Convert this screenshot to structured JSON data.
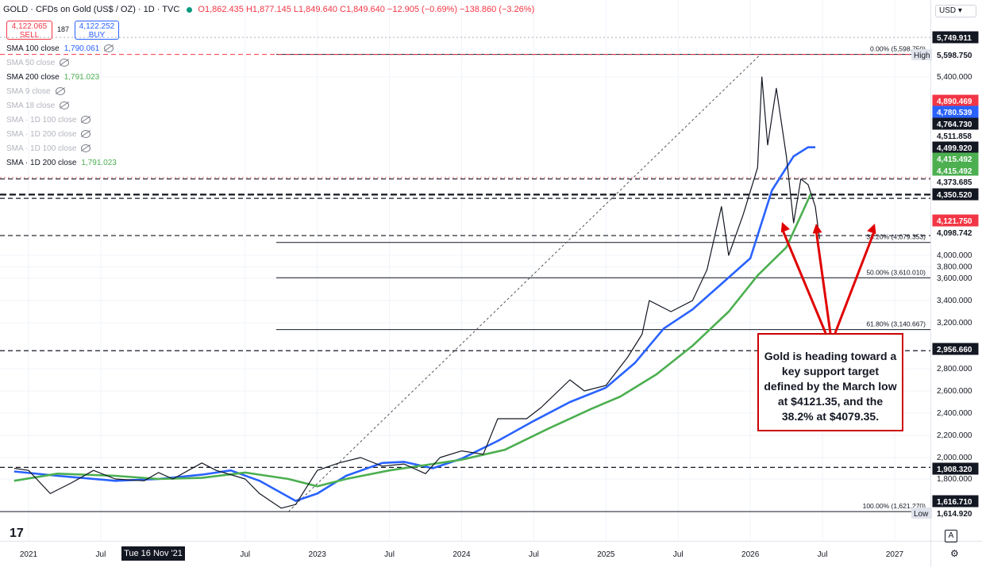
{
  "header": {
    "title": "GOLD · CFDs on Gold (US$ / OZ) · 1D · TVC",
    "ohlc": "O1,862.435 H1,877.145 L1,849.640 C1,849.640 −12.905 (−0.69%) −138.860 (−3.26%)"
  },
  "trade": {
    "sell_price": "4,122.065",
    "sell_label": "SELL",
    "spread": "187",
    "buy_price": "4,122.252",
    "buy_label": "BUY"
  },
  "currency": "USD",
  "indicators": [
    {
      "label": "SMA 100 close",
      "value": "1,790.061",
      "color": "#2962ff",
      "muted": false
    },
    {
      "label": "SMA 50 close",
      "value": "",
      "muted": true
    },
    {
      "label": "SMA 200 close",
      "value": "1,791.023",
      "color": "#4caf50",
      "muted": false
    },
    {
      "label": "SMA 9 close",
      "value": "",
      "muted": true
    },
    {
      "label": "SMA 18 close",
      "value": "",
      "muted": true
    },
    {
      "label": "SMA · 1D 100 close",
      "value": "",
      "muted": true
    },
    {
      "label": "SMA · 1D 200 close",
      "value": "",
      "muted": true
    },
    {
      "label": "SMA · 1D 100 close",
      "value": "",
      "muted": true
    },
    {
      "label": "SMA · 1D 200 close",
      "value": "1,791.023",
      "muted": false
    }
  ],
  "annotation": "Gold is heading toward a key support target defined by the March low at $4121.35, and the 38.2% at $4079.35.",
  "tz_label": "Tue 16 Nov '21",
  "chart_data": {
    "type": "line",
    "ylim": [
      1600,
      5800
    ],
    "y_ticks": [
      1800,
      2000,
      2200,
      2400,
      2600,
      2800,
      3200,
      3400,
      3600,
      3800,
      4000,
      5400
    ],
    "y_tick_labels": [
      "1,800.000",
      "2,000.000",
      "2,200.000",
      "2,400.000",
      "2,600.000",
      "2,800.000",
      "3,200.000",
      "3,400.000",
      "3,600.000",
      "3,800.000",
      "4,000.000",
      "5,400.000"
    ],
    "x_ticks": [
      {
        "t": 2021.0,
        "label": "2021"
      },
      {
        "t": 2021.5,
        "label": "Jul"
      },
      {
        "t": 2022.5,
        "label": "Jul"
      },
      {
        "t": 2023.0,
        "label": "2023"
      },
      {
        "t": 2023.5,
        "label": "Jul"
      },
      {
        "t": 2024.0,
        "label": "2024"
      },
      {
        "t": 2024.5,
        "label": "Jul"
      },
      {
        "t": 2025.0,
        "label": "2025"
      },
      {
        "t": 2025.5,
        "label": "Jul"
      },
      {
        "t": 2026.0,
        "label": "2026"
      },
      {
        "t": 2026.5,
        "label": "Jul"
      },
      {
        "t": 2027.0,
        "label": "2027"
      }
    ],
    "series": [
      {
        "name": "SMA 100 close",
        "color": "#2962ff",
        "points": [
          [
            2020.9,
            1870
          ],
          [
            2021.2,
            1830
          ],
          [
            2021.6,
            1790
          ],
          [
            2021.9,
            1800
          ],
          [
            2022.2,
            1840
          ],
          [
            2022.4,
            1880
          ],
          [
            2022.6,
            1790
          ],
          [
            2022.85,
            1680
          ],
          [
            2023.0,
            1720
          ],
          [
            2023.2,
            1830
          ],
          [
            2023.45,
            1950
          ],
          [
            2023.6,
            1960
          ],
          [
            2023.8,
            1900
          ],
          [
            2024.0,
            1990
          ],
          [
            2024.25,
            2150
          ],
          [
            2024.5,
            2330
          ],
          [
            2024.75,
            2500
          ],
          [
            2025.0,
            2630
          ],
          [
            2025.2,
            2850
          ],
          [
            2025.4,
            3150
          ],
          [
            2025.6,
            3320
          ],
          [
            2025.8,
            3550
          ],
          [
            2026.0,
            3950
          ],
          [
            2026.15,
            4400
          ],
          [
            2026.3,
            4700
          ],
          [
            2026.4,
            4780
          ],
          [
            2026.45,
            4780
          ]
        ]
      },
      {
        "name": "SMA 200 close",
        "color": "#4caf50",
        "points": [
          [
            2020.9,
            1790
          ],
          [
            2021.2,
            1850
          ],
          [
            2021.6,
            1830
          ],
          [
            2021.9,
            1800
          ],
          [
            2022.2,
            1810
          ],
          [
            2022.5,
            1860
          ],
          [
            2022.8,
            1800
          ],
          [
            2023.0,
            1760
          ],
          [
            2023.2,
            1800
          ],
          [
            2023.5,
            1880
          ],
          [
            2023.8,
            1940
          ],
          [
            2024.0,
            1980
          ],
          [
            2024.3,
            2070
          ],
          [
            2024.6,
            2260
          ],
          [
            2024.9,
            2440
          ],
          [
            2025.1,
            2550
          ],
          [
            2025.35,
            2750
          ],
          [
            2025.6,
            3000
          ],
          [
            2025.85,
            3300
          ],
          [
            2026.05,
            3650
          ],
          [
            2026.25,
            4050
          ],
          [
            2026.42,
            4380
          ]
        ]
      },
      {
        "name": "Price",
        "color": "#131722",
        "points": [
          [
            2020.9,
            1900
          ],
          [
            2021.0,
            1880
          ],
          [
            2021.15,
            1720
          ],
          [
            2021.3,
            1780
          ],
          [
            2021.45,
            1880
          ],
          [
            2021.6,
            1800
          ],
          [
            2021.8,
            1790
          ],
          [
            2021.9,
            1860
          ],
          [
            2022.0,
            1800
          ],
          [
            2022.2,
            1950
          ],
          [
            2022.3,
            1880
          ],
          [
            2022.5,
            1800
          ],
          [
            2022.6,
            1720
          ],
          [
            2022.75,
            1640
          ],
          [
            2022.85,
            1660
          ],
          [
            2023.0,
            1880
          ],
          [
            2023.15,
            1950
          ],
          [
            2023.3,
            2000
          ],
          [
            2023.45,
            1920
          ],
          [
            2023.6,
            1940
          ],
          [
            2023.75,
            1850
          ],
          [
            2023.85,
            2000
          ],
          [
            2024.0,
            2060
          ],
          [
            2024.15,
            2030
          ],
          [
            2024.25,
            2350
          ],
          [
            2024.45,
            2350
          ],
          [
            2024.55,
            2450
          ],
          [
            2024.75,
            2700
          ],
          [
            2024.85,
            2600
          ],
          [
            2025.0,
            2650
          ],
          [
            2025.15,
            2900
          ],
          [
            2025.25,
            3100
          ],
          [
            2025.3,
            3400
          ],
          [
            2025.45,
            3300
          ],
          [
            2025.6,
            3400
          ],
          [
            2025.7,
            3750
          ],
          [
            2025.8,
            4300
          ],
          [
            2025.85,
            4000
          ],
          [
            2025.95,
            4250
          ],
          [
            2026.05,
            4600
          ],
          [
            2026.08,
            5400
          ],
          [
            2026.12,
            4800
          ],
          [
            2026.18,
            5300
          ],
          [
            2026.25,
            4700
          ],
          [
            2026.3,
            4200
          ],
          [
            2026.35,
            4500
          ],
          [
            2026.4,
            4450
          ],
          [
            2026.45,
            4300
          ],
          [
            2026.48,
            4100
          ]
        ]
      }
    ],
    "fib_levels": [
      {
        "label": "0.00% (5,598.750)",
        "value": 5598.75
      },
      {
        "label": "38.20% (4,079.353)",
        "value": 4079.353
      },
      {
        "label": "50.00% (3,610.010)",
        "value": 3610.01
      },
      {
        "label": "61.80% (3,140.667)",
        "value": 3140.667
      },
      {
        "label": "100.00% (1,621.270)",
        "value": 1621.27
      }
    ],
    "h_lines": [
      {
        "value": 4499.92,
        "style": "dashed"
      },
      {
        "value": 4373.685,
        "style": "dashed-bold"
      },
      {
        "value": 4350.52,
        "style": "dashed"
      },
      {
        "value": 4121.75,
        "style": "dashed"
      },
      {
        "value": 2956.66,
        "style": "dashed"
      },
      {
        "value": 1908.32,
        "style": "dashed"
      },
      {
        "value": 4511.858,
        "style": "dotted-red"
      },
      {
        "value": 5749.911,
        "style": "dotted-gray"
      }
    ],
    "price_labels": [
      {
        "text": "5,749.911",
        "value": 5749.911,
        "bg": "#131722",
        "fg": "#ffffff"
      },
      {
        "text": "5,598.750",
        "value": 5598.75,
        "bg": "#ffffff",
        "fg": "#131722",
        "tag": "High"
      },
      {
        "text": "4,890.469",
        "value": 4890.469,
        "bg": "#f23645",
        "fg": "#ffffff"
      },
      {
        "text": "4,780.539",
        "value": 4780.539,
        "bg": "#2962ff",
        "fg": "#ffffff"
      },
      {
        "text": "4,764.730",
        "value": 4764.73,
        "bg": "#131722",
        "fg": "#ffffff"
      },
      {
        "text": "4,511.858",
        "value": 4511.858,
        "bg": "#ffffff",
        "fg": "#131722"
      },
      {
        "text": "4,499.920",
        "value": 4499.92,
        "bg": "#131722",
        "fg": "#ffffff"
      },
      {
        "text": "4,415.492",
        "value": 4415.492,
        "bg": "#4caf50",
        "fg": "#ffffff"
      },
      {
        "text": "4,415.492",
        "value": 4415.492,
        "bg": "#4caf50",
        "fg": "#ffffff",
        "stack": 1
      },
      {
        "text": "4,373.685",
        "value": 4373.685,
        "bg": "#ffffff",
        "fg": "#131722"
      },
      {
        "text": "4,350.520",
        "value": 4350.52,
        "bg": "#131722",
        "fg": "#ffffff"
      },
      {
        "text": "4,121.750",
        "value": 4121.75,
        "bg": "#f23645",
        "fg": "#ffffff"
      },
      {
        "text": "4,098.742",
        "value": 4098.742,
        "bg": "#ffffff",
        "fg": "#131722"
      },
      {
        "text": "2,956.660",
        "value": 2956.66,
        "bg": "#131722",
        "fg": "#ffffff"
      },
      {
        "text": "1,908.320",
        "value": 1908.32,
        "bg": "#131722",
        "fg": "#ffffff"
      },
      {
        "text": "1,616.710",
        "value": 1616.71,
        "bg": "#131722",
        "fg": "#ffffff"
      },
      {
        "text": "1,614.920",
        "value": 1614.92,
        "bg": "#ffffff",
        "fg": "#131722",
        "tag": "Low"
      }
    ]
  }
}
